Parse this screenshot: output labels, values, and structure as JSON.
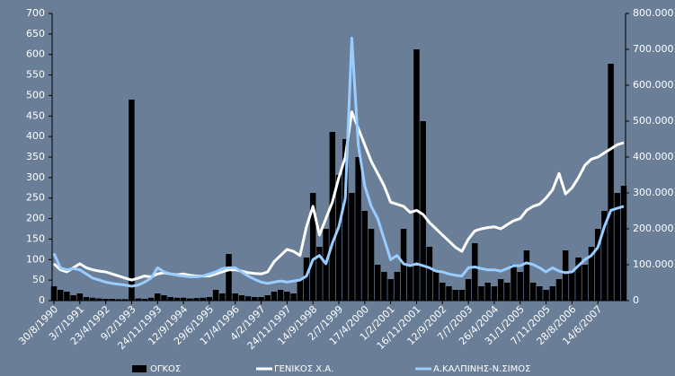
{
  "chart_data": {
    "type": "combo",
    "categories": [
      "30/8/1990",
      null,
      null,
      null,
      "3/7/1991",
      null,
      null,
      null,
      "23/4/1992",
      null,
      null,
      null,
      "9/2/1993",
      null,
      null,
      null,
      "24/11/1993",
      null,
      null,
      null,
      "12/9/1994",
      null,
      null,
      null,
      "29/6/1995",
      null,
      null,
      null,
      "17/4/1996",
      null,
      null,
      null,
      "4/2/1997",
      null,
      null,
      null,
      "24/11/1997",
      null,
      null,
      null,
      "14/9/1998",
      null,
      null,
      null,
      "2/7/1999",
      null,
      null,
      null,
      "17/4/2000",
      null,
      null,
      null,
      "1/2/2001",
      null,
      null,
      null,
      "16/11/2001",
      null,
      null,
      null,
      "12/9/2002",
      null,
      null,
      null,
      "7/7/2003",
      null,
      null,
      null,
      "26/4/2004",
      null,
      null,
      null,
      "31/1/2005",
      null,
      null,
      null,
      "7/11/2005",
      null,
      null,
      null,
      "28/8/2006",
      null,
      null,
      null,
      "14/6/2007",
      null,
      null,
      null,
      null
    ],
    "series": [
      {
        "name": "ΟΓΚΟΣ",
        "type": "bar",
        "axis": "y2",
        "color": "#000000",
        "values": [
          40000,
          30000,
          25000,
          15000,
          20000,
          10000,
          8000,
          6000,
          5000,
          5000,
          4000,
          4000,
          560000,
          6000,
          5000,
          8000,
          20000,
          15000,
          10000,
          8000,
          8000,
          6000,
          7000,
          8000,
          10000,
          30000,
          20000,
          130000,
          20000,
          15000,
          12000,
          10000,
          10000,
          15000,
          25000,
          30000,
          25000,
          20000,
          60000,
          120000,
          300000,
          150000,
          200000,
          470000,
          350000,
          450000,
          300000,
          400000,
          250000,
          200000,
          100000,
          80000,
          60000,
          80000,
          200000,
          100000,
          700000,
          500000,
          150000,
          80000,
          50000,
          40000,
          30000,
          30000,
          60000,
          160000,
          40000,
          50000,
          40000,
          60000,
          50000,
          100000,
          80000,
          140000,
          50000,
          40000,
          30000,
          40000,
          60000,
          140000,
          80000,
          120000,
          100000,
          150000,
          200000,
          250000,
          660000,
          300000,
          320000
        ]
      },
      {
        "name": "ΓΕΝΙΚΟΣ Χ.Α.",
        "type": "line",
        "color": "#ffffff",
        "values": [
          90,
          75,
          70,
          80,
          90,
          80,
          75,
          72,
          70,
          65,
          60,
          55,
          50,
          55,
          60,
          58,
          65,
          68,
          65,
          63,
          65,
          62,
          60,
          60,
          60,
          65,
          70,
          75,
          75,
          72,
          68,
          66,
          65,
          70,
          95,
          110,
          125,
          120,
          110,
          180,
          230,
          160,
          200,
          240,
          300,
          350,
          460,
          420,
          380,
          340,
          310,
          280,
          240,
          235,
          230,
          215,
          220,
          210,
          190,
          175,
          160,
          145,
          130,
          120,
          150,
          170,
          175,
          178,
          180,
          175,
          185,
          195,
          200,
          220,
          230,
          235,
          250,
          270,
          310,
          260,
          275,
          300,
          330,
          345,
          350,
          360,
          370,
          380,
          385
        ]
      },
      {
        "name": "Α.ΚΑΛΠΙΝΗΣ-Ν.ΣΙΜΟΣ",
        "type": "line",
        "color": "#99ccff",
        "values": [
          115,
          80,
          75,
          78,
          75,
          65,
          55,
          50,
          45,
          42,
          40,
          38,
          35,
          38,
          45,
          55,
          80,
          70,
          65,
          62,
          60,
          58,
          58,
          60,
          65,
          70,
          78,
          80,
          80,
          70,
          60,
          52,
          45,
          42,
          45,
          48,
          45,
          48,
          50,
          60,
          100,
          110,
          90,
          140,
          180,
          250,
          640,
          380,
          280,
          230,
          200,
          150,
          100,
          110,
          90,
          85,
          90,
          85,
          80,
          72,
          70,
          65,
          62,
          60,
          80,
          82,
          78,
          75,
          75,
          72,
          78,
          85,
          85,
          92,
          88,
          80,
          70,
          80,
          72,
          68,
          70,
          85,
          100,
          110,
          130,
          180,
          220,
          225,
          230
        ]
      }
    ],
    "ylim": [
      0,
      700
    ],
    "yticks": [
      0,
      50,
      100,
      150,
      200,
      250,
      300,
      350,
      400,
      450,
      500,
      550,
      600,
      650,
      700
    ],
    "y2lim": [
      0,
      800000
    ],
    "y2ticks": [
      0,
      {
        "value": 100000,
        "label": "100.000"
      },
      {
        "value": 200000,
        "label": "200.000"
      },
      {
        "value": 300000,
        "label": "300.000"
      },
      {
        "value": 400000,
        "label": "400.000"
      },
      {
        "value": 500000,
        "label": "500.000"
      },
      {
        "value": 600000,
        "label": "600.000"
      },
      {
        "value": 700000,
        "label": "700.000"
      },
      {
        "value": 800000,
        "label": "800.000"
      }
    ],
    "grid": false,
    "legend": "bottom"
  }
}
